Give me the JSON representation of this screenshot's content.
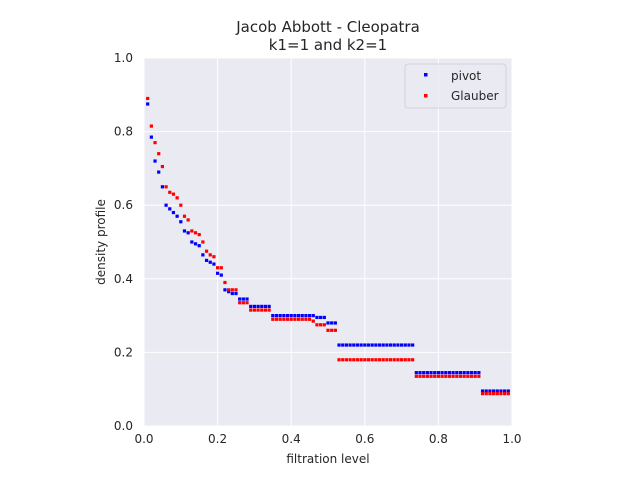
{
  "chart_data": {
    "type": "scatter",
    "title": "Jacob Abbott - Cleopatra",
    "subtitle": "k1=1 and k2=1",
    "xlabel": "filtration level",
    "ylabel": "density profile",
    "xlim": [
      0.0,
      1.0
    ],
    "ylim": [
      0.0,
      1.0
    ],
    "xticks": [
      "0.0",
      "0.2",
      "0.4",
      "0.6",
      "0.8",
      "1.0"
    ],
    "yticks": [
      "0.0",
      "0.2",
      "0.4",
      "0.6",
      "0.8",
      "1.0"
    ],
    "grid": true,
    "legend_position": "top-right",
    "series": [
      {
        "name": "pivot",
        "color": "#0000ff",
        "x": [
          0.01,
          0.02,
          0.03,
          0.04,
          0.05,
          0.06,
          0.07,
          0.08,
          0.09,
          0.1,
          0.11,
          0.12,
          0.13,
          0.14,
          0.15,
          0.16,
          0.17,
          0.18,
          0.19,
          0.2,
          0.21,
          0.22,
          0.23,
          0.24,
          0.25,
          0.26,
          0.27,
          0.28,
          0.29,
          0.3,
          0.31,
          0.32,
          0.33,
          0.34,
          0.35,
          0.36,
          0.37,
          0.38,
          0.39,
          0.4,
          0.41,
          0.42,
          0.43,
          0.44,
          0.45,
          0.46,
          0.47,
          0.48,
          0.49,
          0.5,
          0.51,
          0.52,
          0.53,
          0.54,
          0.55,
          0.56,
          0.57,
          0.58,
          0.59,
          0.6,
          0.61,
          0.62,
          0.63,
          0.64,
          0.65,
          0.66,
          0.67,
          0.68,
          0.69,
          0.7,
          0.71,
          0.72,
          0.73,
          0.74,
          0.75,
          0.76,
          0.77,
          0.78,
          0.79,
          0.8,
          0.81,
          0.82,
          0.83,
          0.84,
          0.85,
          0.86,
          0.87,
          0.88,
          0.89,
          0.9,
          0.91,
          0.92,
          0.93,
          0.94,
          0.95,
          0.96,
          0.97,
          0.98,
          0.99
        ],
        "y": [
          0.875,
          0.785,
          0.72,
          0.69,
          0.65,
          0.6,
          0.59,
          0.58,
          0.57,
          0.555,
          0.53,
          0.525,
          0.5,
          0.495,
          0.49,
          0.465,
          0.45,
          0.445,
          0.44,
          0.415,
          0.41,
          0.37,
          0.365,
          0.36,
          0.36,
          0.345,
          0.345,
          0.345,
          0.325,
          0.325,
          0.325,
          0.325,
          0.325,
          0.325,
          0.3,
          0.3,
          0.3,
          0.3,
          0.3,
          0.3,
          0.3,
          0.3,
          0.3,
          0.3,
          0.3,
          0.3,
          0.295,
          0.295,
          0.295,
          0.28,
          0.28,
          0.28,
          0.22,
          0.22,
          0.22,
          0.22,
          0.22,
          0.22,
          0.22,
          0.22,
          0.22,
          0.22,
          0.22,
          0.22,
          0.22,
          0.22,
          0.22,
          0.22,
          0.22,
          0.22,
          0.22,
          0.22,
          0.22,
          0.145,
          0.145,
          0.145,
          0.145,
          0.145,
          0.145,
          0.145,
          0.145,
          0.145,
          0.145,
          0.145,
          0.145,
          0.145,
          0.145,
          0.145,
          0.145,
          0.145,
          0.145,
          0.095,
          0.095,
          0.095,
          0.095,
          0.095,
          0.095,
          0.095,
          0.095
        ]
      },
      {
        "name": "Glauber",
        "color": "#ff0000",
        "x": [
          0.01,
          0.02,
          0.03,
          0.04,
          0.05,
          0.06,
          0.07,
          0.08,
          0.09,
          0.1,
          0.11,
          0.12,
          0.13,
          0.14,
          0.15,
          0.16,
          0.17,
          0.18,
          0.19,
          0.2,
          0.21,
          0.22,
          0.23,
          0.24,
          0.25,
          0.26,
          0.27,
          0.28,
          0.29,
          0.3,
          0.31,
          0.32,
          0.33,
          0.34,
          0.35,
          0.36,
          0.37,
          0.38,
          0.39,
          0.4,
          0.41,
          0.42,
          0.43,
          0.44,
          0.45,
          0.46,
          0.47,
          0.48,
          0.49,
          0.5,
          0.51,
          0.52,
          0.53,
          0.54,
          0.55,
          0.56,
          0.57,
          0.58,
          0.59,
          0.6,
          0.61,
          0.62,
          0.63,
          0.64,
          0.65,
          0.66,
          0.67,
          0.68,
          0.69,
          0.7,
          0.71,
          0.72,
          0.73,
          0.74,
          0.75,
          0.76,
          0.77,
          0.78,
          0.79,
          0.8,
          0.81,
          0.82,
          0.83,
          0.84,
          0.85,
          0.86,
          0.87,
          0.88,
          0.89,
          0.9,
          0.91,
          0.92,
          0.93,
          0.94,
          0.95,
          0.96,
          0.97,
          0.98,
          0.99
        ],
        "y": [
          0.89,
          0.815,
          0.77,
          0.74,
          0.705,
          0.65,
          0.635,
          0.63,
          0.62,
          0.6,
          0.57,
          0.56,
          0.53,
          0.525,
          0.52,
          0.5,
          0.475,
          0.465,
          0.46,
          0.43,
          0.43,
          0.39,
          0.37,
          0.37,
          0.37,
          0.335,
          0.335,
          0.335,
          0.315,
          0.315,
          0.315,
          0.315,
          0.315,
          0.315,
          0.29,
          0.29,
          0.29,
          0.29,
          0.29,
          0.29,
          0.29,
          0.29,
          0.29,
          0.29,
          0.29,
          0.285,
          0.275,
          0.275,
          0.275,
          0.26,
          0.26,
          0.26,
          0.18,
          0.18,
          0.18,
          0.18,
          0.18,
          0.18,
          0.18,
          0.18,
          0.18,
          0.18,
          0.18,
          0.18,
          0.18,
          0.18,
          0.18,
          0.18,
          0.18,
          0.18,
          0.18,
          0.18,
          0.18,
          0.135,
          0.135,
          0.135,
          0.135,
          0.135,
          0.135,
          0.135,
          0.135,
          0.135,
          0.135,
          0.135,
          0.135,
          0.135,
          0.135,
          0.135,
          0.135,
          0.135,
          0.135,
          0.088,
          0.088,
          0.088,
          0.088,
          0.088,
          0.088,
          0.088,
          0.088
        ]
      }
    ]
  },
  "colors": {
    "plot_background": "#eaeaf2",
    "grid": "#ffffff",
    "text": "#262626"
  }
}
